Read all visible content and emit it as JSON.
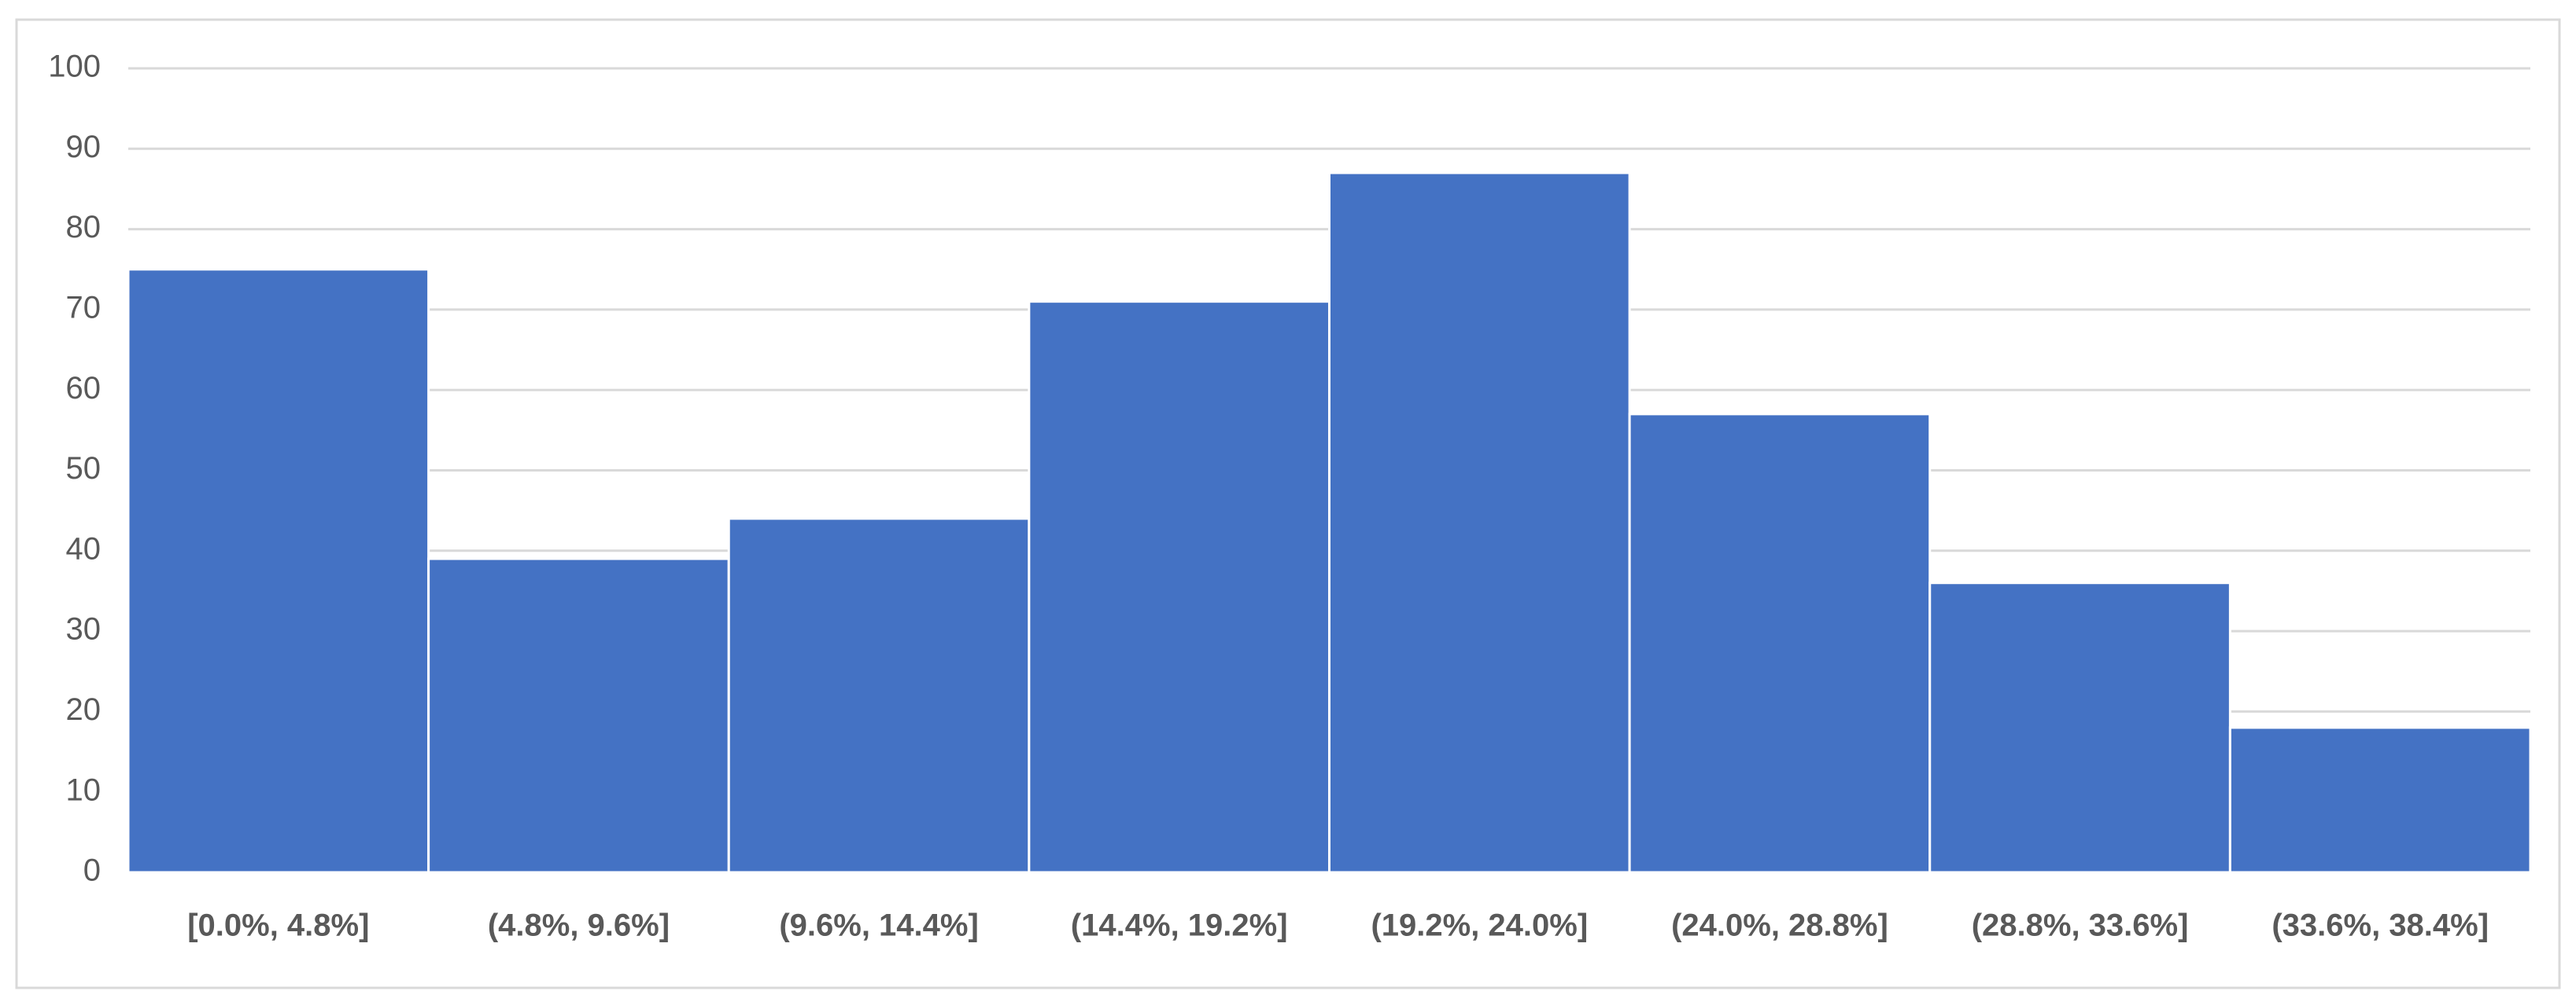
{
  "chart_data": {
    "type": "bar",
    "categories": [
      "[0.0%, 4.8%]",
      "(4.8%, 9.6%]",
      "(9.6%, 14.4%]",
      "(14.4%, 19.2%]",
      "(19.2%, 24.0%]",
      "(24.0%, 28.8%]",
      "(28.8%, 33.6%]",
      "(33.6%, 38.4%]"
    ],
    "values": [
      75,
      39,
      44,
      71,
      87,
      57,
      36,
      18
    ],
    "color": "#4472c4",
    "ylim": [
      0,
      100
    ],
    "yticks": [
      0,
      10,
      20,
      30,
      40,
      50,
      60,
      70,
      80,
      90,
      100
    ],
    "grid": true
  }
}
